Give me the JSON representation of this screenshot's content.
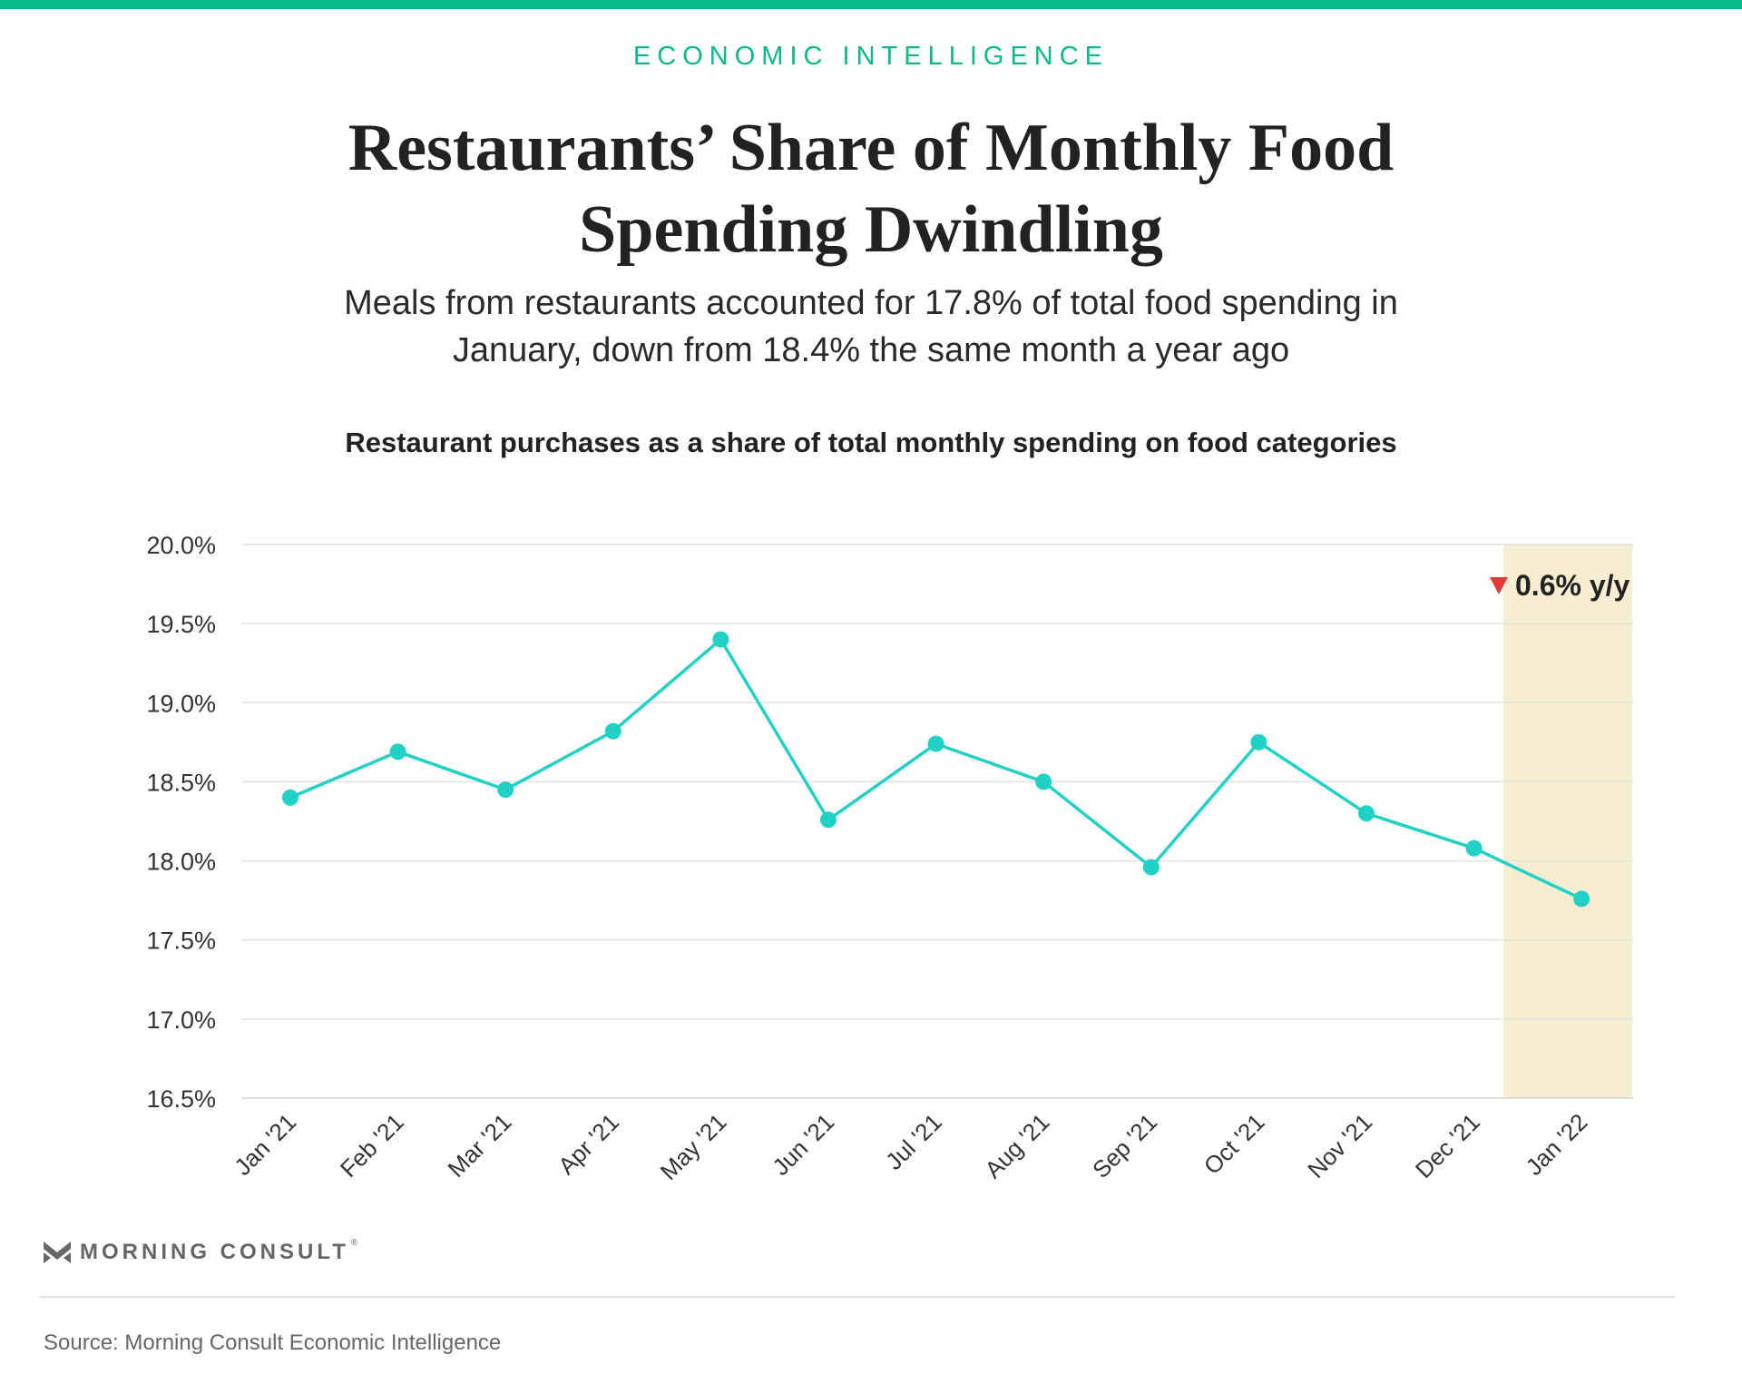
{
  "header": {
    "kicker": "ECONOMIC INTELLIGENCE",
    "title_line1": "Restaurants’ Share of Monthly Food",
    "title_line2": "Spending Dwindling",
    "subtitle_line1": "Meals from restaurants accounted for 17.8% of total food spending in",
    "subtitle_line2": "January, down from 18.4% the same month a year ago"
  },
  "colors": {
    "accent": "#0bb88a",
    "line": "#22d1c6",
    "highlight": "#f7edd2",
    "down_arrow": "#e53935",
    "grid": "#e2e2e2",
    "axis": "#d0d0d0"
  },
  "chart_data": {
    "type": "line",
    "title": "Restaurant purchases as a share of total monthly spending on food categories",
    "categories": [
      "Jan '21",
      "Feb '21",
      "Mar '21",
      "Apr '21",
      "May '21",
      "Jun '21",
      "Jul '21",
      "Aug '21",
      "Sep '21",
      "Oct '21",
      "Nov '21",
      "Dec '21",
      "Jan '22"
    ],
    "series": [
      {
        "values": [
          18.4,
          18.69,
          18.45,
          18.82,
          19.4,
          18.26,
          18.74,
          18.5,
          17.96,
          18.75,
          18.3,
          18.08,
          17.76
        ]
      }
    ],
    "ylim": [
      16.5,
      20.0
    ],
    "yticks": [
      20.0,
      19.5,
      19.0,
      18.5,
      18.0,
      17.5,
      17.0,
      16.5
    ],
    "ytick_labels": [
      "20.0%",
      "19.5%",
      "19.0%",
      "18.5%",
      "18.0%",
      "17.5%",
      "17.0%",
      "16.5%"
    ],
    "grid": true,
    "highlight": {
      "category": "Jan '22"
    },
    "annotation": {
      "text": "0.6% y/y",
      "direction": "down",
      "icon": "down-triangle-icon"
    }
  },
  "footer": {
    "logo_text": "MORNING CONSULT",
    "logo_registered": "®",
    "logo_icon": "morning-consult-m-icon",
    "source": "Source: Morning Consult Economic Intelligence"
  }
}
